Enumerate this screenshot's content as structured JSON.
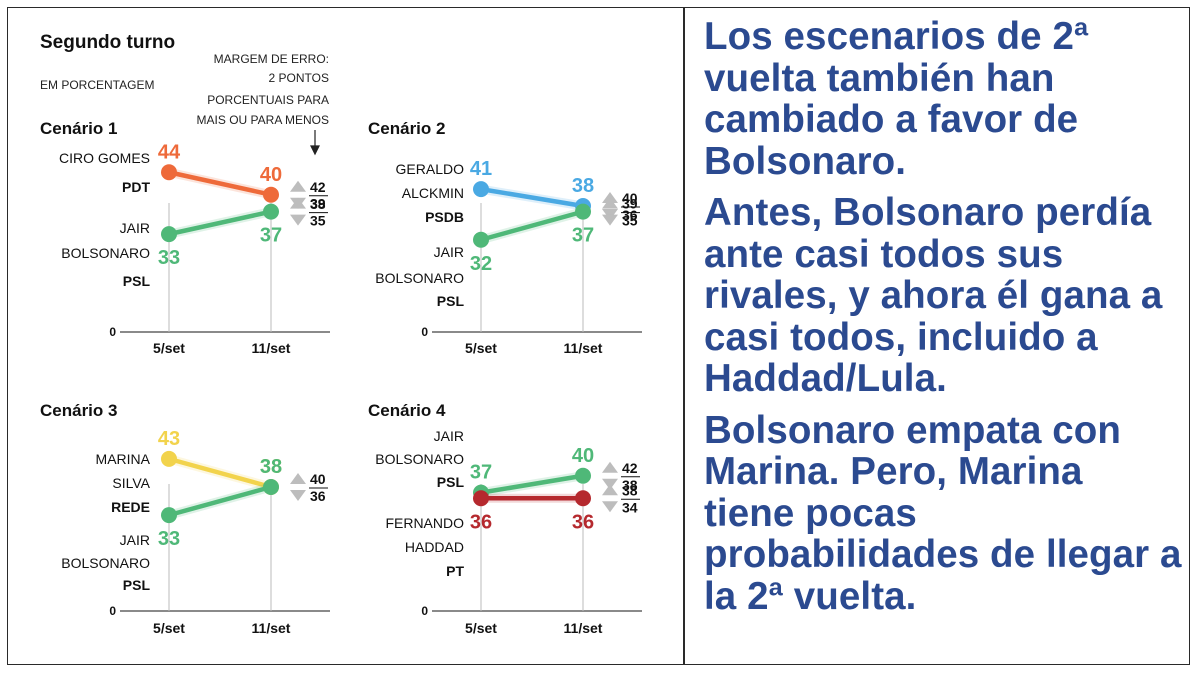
{
  "header": {
    "title": "Segundo turno",
    "subtitle": "EM PORCENTAGEM",
    "margin_note": [
      "MARGEM DE ERRO:",
      "2 PONTOS",
      "PORCENTUAIS PARA",
      "MAIS OU PARA MENOS"
    ]
  },
  "colors": {
    "ciro": "#ee6a3a",
    "bolsonaro": "#4fb878",
    "alckmin": "#4aa9e3",
    "marina": "#f2d34c",
    "haddad": "#b5292e",
    "axis": "#444444"
  },
  "chart_data": [
    {
      "type": "line",
      "title": "Cenário 1",
      "categories": [
        "5/set",
        "11/set"
      ],
      "ylim": [
        0,
        100
      ],
      "zero_label": "0",
      "series": [
        {
          "name_lines": [
            "CIRO GOMES",
            "PDT"
          ],
          "values": [
            44,
            40
          ],
          "color_key": "ciro",
          "margin": [
            "42",
            "38"
          ]
        },
        {
          "name_lines": [
            "JAIR",
            "BOLSONARO",
            "PSL"
          ],
          "values": [
            33,
            37
          ],
          "color_key": "bolsonaro",
          "margin": [
            "39",
            "35"
          ]
        }
      ]
    },
    {
      "type": "line",
      "title": "Cenário 2",
      "categories": [
        "5/set",
        "11/set"
      ],
      "ylim": [
        0,
        100
      ],
      "zero_label": "0",
      "series": [
        {
          "name_lines": [
            "GERALDO",
            "ALCKMIN",
            "PSDB"
          ],
          "values": [
            41,
            38
          ],
          "color_key": "alckmin",
          "margin": [
            "40",
            "36"
          ]
        },
        {
          "name_lines": [
            "JAIR",
            "BOLSONARO",
            "PSL"
          ],
          "values": [
            32,
            37
          ],
          "color_key": "bolsonaro",
          "margin": [
            "39",
            "35"
          ]
        }
      ]
    },
    {
      "type": "line",
      "title": "Cenário 3",
      "categories": [
        "5/set",
        "11/set"
      ],
      "ylim": [
        0,
        100
      ],
      "zero_label": "0",
      "series": [
        {
          "name_lines": [
            "MARINA",
            "SILVA",
            "REDE"
          ],
          "values": [
            43,
            38
          ],
          "color_key": "marina",
          "margin": [
            "40",
            "36"
          ]
        },
        {
          "name_lines": [
            "JAIR",
            "BOLSONARO",
            "PSL"
          ],
          "values": [
            33,
            38
          ],
          "color_key": "bolsonaro",
          "margin": null
        }
      ]
    },
    {
      "type": "line",
      "title": "Cenário 4",
      "categories": [
        "5/set",
        "11/set"
      ],
      "ylim": [
        0,
        100
      ],
      "zero_label": "0",
      "series": [
        {
          "name_lines": [
            "JAIR",
            "BOLSONARO",
            "PSL"
          ],
          "values": [
            37,
            40
          ],
          "color_key": "bolsonaro",
          "margin": [
            "42",
            "38"
          ]
        },
        {
          "name_lines": [
            "FERNANDO",
            "HADDAD",
            "PT"
          ],
          "values": [
            36,
            36
          ],
          "color_key": "haddad",
          "margin": [
            "38",
            "34"
          ]
        }
      ]
    }
  ],
  "right_panel": {
    "paragraphs": [
      "Los escenarios de 2ª vuelta también han cambiado a favor de Bolsonaro.",
      "Antes, Bolsonaro perdía ante casi todos sus rivales, y ahora él gana a casi todos, incluido a Haddad/Lula.",
      "Bolsonaro empata con Marina. Pero, Marina tiene pocas probabilidades de llegar a la 2ª vuelta."
    ]
  }
}
